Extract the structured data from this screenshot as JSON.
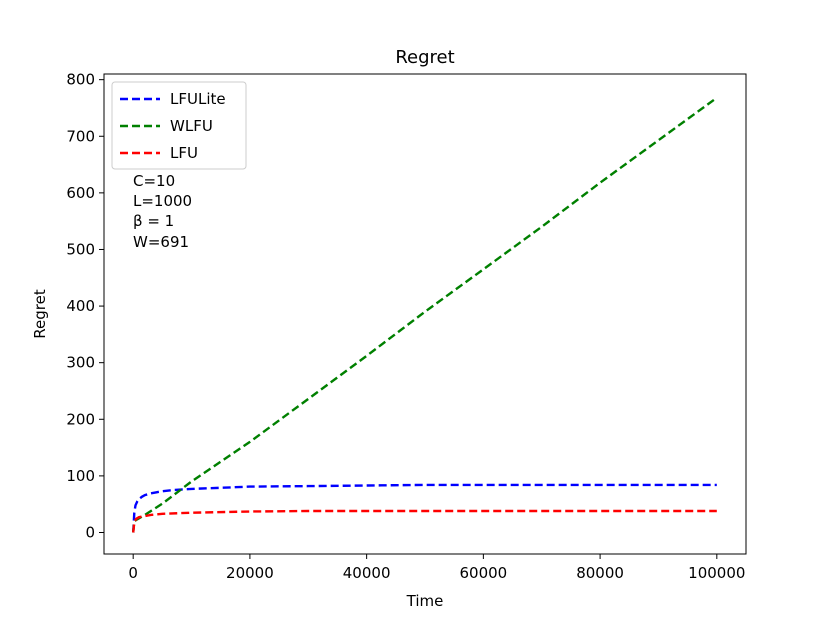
{
  "chart_data": {
    "type": "line",
    "title": "Regret",
    "xlabel": "Time",
    "ylabel": "Regret",
    "xlim": [
      -5000,
      105000
    ],
    "ylim": [
      -38,
      810
    ],
    "xticks": [
      0,
      20000,
      40000,
      60000,
      80000,
      100000
    ],
    "xtick_labels": [
      "0",
      "20000",
      "40000",
      "60000",
      "80000",
      "100000"
    ],
    "yticks": [
      0,
      100,
      200,
      300,
      400,
      500,
      600,
      700,
      800
    ],
    "ytick_labels": [
      "0",
      "100",
      "200",
      "300",
      "400",
      "500",
      "600",
      "700",
      "800"
    ],
    "grid": false,
    "legend": "top-left",
    "annotations": [
      "C=10",
      "L=1000",
      "β = 1",
      "W=691"
    ],
    "series": [
      {
        "name": "LFULite",
        "color": "#0000ff",
        "x": [
          0,
          200,
          400,
          700,
          1000,
          1500,
          2000,
          3000,
          4000,
          5000,
          7000,
          10000,
          15000,
          20000,
          30000,
          40000,
          50000,
          60000,
          70000,
          80000,
          90000,
          100000
        ],
        "y": [
          0,
          35,
          48,
          55,
          59,
          63,
          66,
          69,
          71,
          73,
          75,
          77,
          79,
          81,
          82,
          83,
          84,
          84,
          84,
          84,
          84,
          84
        ]
      },
      {
        "name": "WLFU",
        "color": "#008000",
        "x": [
          0,
          200,
          500,
          1000,
          2000,
          5000,
          10000,
          20000,
          30000,
          40000,
          50000,
          60000,
          70000,
          80000,
          90000,
          100000
        ],
        "y": [
          0,
          20,
          22,
          25,
          31,
          51,
          90,
          160,
          236,
          312,
          390,
          465,
          540,
          618,
          693,
          768
        ]
      },
      {
        "name": "LFU",
        "color": "#ff0000",
        "x": [
          0,
          200,
          500,
          1000,
          2000,
          3000,
          5000,
          10000,
          20000,
          30000,
          40000,
          50000,
          60000,
          70000,
          80000,
          90000,
          100000
        ],
        "y": [
          0,
          18,
          24,
          27,
          29,
          31,
          33,
          35,
          37,
          38,
          38,
          38,
          38,
          38,
          38,
          38,
          38
        ]
      }
    ]
  }
}
